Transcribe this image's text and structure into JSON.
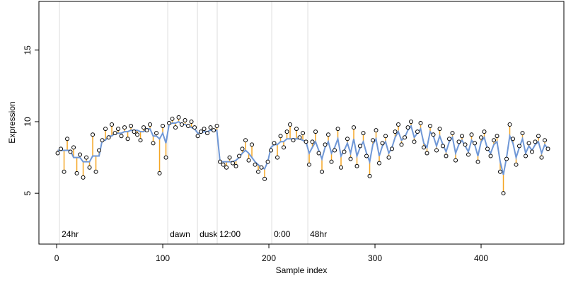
{
  "chart_data": {
    "type": "scatter",
    "xlabel": "Sample index",
    "ylabel": "Expression",
    "xlim": [
      -16.7,
      478
    ],
    "ylim": [
      1.45,
      18.4
    ],
    "xticks": [
      0,
      100,
      200,
      300,
      400
    ],
    "yticks": [
      5,
      10,
      15
    ],
    "point_color": "#ffffff",
    "fit_color": "#6f97d6",
    "residual_color": "#f5a623",
    "marker_color": "#dddddd",
    "marker_label_color": "#aaaaaa",
    "markers": [
      {
        "x": 2.7,
        "y": 2.1,
        "label": "24hr"
      },
      {
        "x": 104.7,
        "y": 2.1,
        "label": "dawn"
      },
      {
        "x": 132.7,
        "y": 2.1,
        "label": "dusk"
      },
      {
        "x": 151.3,
        "y": 2.1,
        "label": "12:00"
      },
      {
        "x": 202.7,
        "y": 2.1,
        "label": "0:00"
      },
      {
        "x": 236.7,
        "y": 2.1,
        "label": "48hr"
      }
    ],
    "x": [
      1,
      4,
      7,
      10,
      13,
      16,
      19,
      22,
      25,
      28,
      31,
      34,
      37,
      40,
      43,
      46,
      49,
      52,
      55,
      58,
      61,
      64,
      67,
      70,
      73,
      76,
      79,
      82,
      85,
      88,
      91,
      94,
      97,
      100,
      103,
      106,
      109,
      112,
      115,
      118,
      121,
      124,
      127,
      130,
      133,
      136,
      139,
      142,
      145,
      148,
      151,
      154,
      157,
      160,
      163,
      166,
      169,
      172,
      175,
      178,
      181,
      184,
      187,
      190,
      193,
      196,
      199,
      202,
      205,
      208,
      211,
      214,
      217,
      220,
      223,
      226,
      229,
      232,
      235,
      238,
      241,
      244,
      247,
      250,
      253,
      256,
      259,
      262,
      265,
      268,
      271,
      274,
      277,
      280,
      283,
      286,
      289,
      292,
      295,
      298,
      301,
      304,
      307,
      310,
      313,
      316,
      319,
      322,
      325,
      328,
      331,
      334,
      337,
      340,
      343,
      346,
      349,
      352,
      355,
      358,
      361,
      364,
      367,
      370,
      373,
      376,
      379,
      382,
      385,
      388,
      391,
      394,
      397,
      400,
      403,
      406,
      409,
      412,
      415,
      418,
      421,
      424,
      427,
      430,
      433,
      436,
      439,
      442,
      445,
      448,
      451,
      454,
      457,
      460,
      463
    ],
    "observed": [
      7.8,
      8.1,
      6.5,
      8.8,
      7.9,
      8.2,
      6.4,
      7.7,
      6.1,
      7.5,
      6.8,
      9.1,
      6.5,
      8.0,
      8.7,
      9.5,
      8.9,
      9.8,
      9.2,
      9.5,
      9.0,
      9.6,
      8.8,
      9.7,
      9.3,
      9.1,
      8.7,
      9.6,
      9.4,
      9.8,
      8.5,
      9.2,
      6.4,
      9.7,
      7.5,
      9.9,
      10.2,
      9.6,
      10.3,
      9.8,
      10.1,
      9.7,
      10.0,
      9.6,
      9.0,
      9.3,
      9.5,
      9.2,
      9.6,
      9.4,
      9.7,
      7.2,
      7.0,
      6.8,
      7.5,
      7.1,
      6.9,
      7.6,
      8.1,
      8.7,
      7.3,
      8.4,
      7.0,
      6.5,
      6.8,
      6.0,
      7.2,
      8.0,
      8.5,
      7.5,
      9.0,
      8.2,
      9.3,
      9.8,
      8.7,
      9.5,
      8.9,
      9.2,
      8.6,
      7.0,
      8.6,
      9.3,
      7.8,
      6.5,
      8.4,
      9.1,
      7.2,
      8.0,
      9.5,
      6.8,
      7.9,
      8.8,
      7.4,
      9.6,
      6.9,
      8.3,
      9.2,
      7.6,
      6.2,
      8.7,
      9.4,
      7.1,
      8.5,
      9.0,
      7.5,
      8.1,
      9.3,
      9.8,
      8.4,
      8.9,
      9.6,
      10.0,
      8.6,
      9.3,
      9.9,
      8.2,
      7.8,
      9.7,
      9.1,
      8.0,
      9.5,
      8.3,
      7.6,
      8.8,
      9.2,
      7.3,
      8.6,
      9.0,
      8.4,
      7.7,
      9.1,
      8.5,
      7.2,
      8.9,
      9.3,
      8.1,
      7.6,
      8.7,
      9.0,
      6.5,
      5.0,
      7.4,
      9.8,
      8.8,
      7.0,
      8.3,
      9.2,
      7.6,
      8.5,
      7.9,
      8.6,
      9.0,
      7.5,
      8.7,
      8.1
    ],
    "fitted": [
      8.0,
      8.0,
      8.0,
      8.0,
      8.0,
      7.5,
      7.5,
      7.5,
      7.2,
      7.2,
      7.2,
      7.6,
      7.6,
      7.6,
      8.7,
      8.7,
      9.0,
      9.0,
      9.2,
      9.2,
      9.2,
      9.3,
      9.3,
      9.4,
      9.4,
      9.4,
      9.3,
      9.3,
      9.5,
      9.5,
      9.0,
      9.0,
      8.8,
      9.2,
      8.5,
      9.8,
      9.9,
      9.9,
      10.0,
      9.8,
      9.8,
      9.7,
      9.6,
      9.5,
      9.2,
      9.2,
      9.3,
      9.3,
      9.4,
      9.4,
      9.4,
      7.2,
      7.2,
      7.2,
      7.2,
      7.2,
      7.3,
      7.5,
      7.8,
      8.0,
      7.8,
      7.5,
      7.2,
      7.0,
      6.8,
      6.7,
      7.2,
      8.2,
      8.4,
      8.4,
      8.6,
      8.6,
      8.8,
      8.8,
      8.8,
      8.8,
      8.8,
      8.7,
      8.6,
      7.8,
      8.2,
      8.6,
      8.0,
      7.4,
      8.2,
      8.6,
      7.8,
      8.2,
      8.8,
      7.6,
      8.0,
      8.5,
      7.8,
      8.8,
      7.6,
      8.2,
      8.6,
      7.8,
      7.2,
      8.4,
      8.8,
      7.6,
      8.3,
      8.6,
      7.8,
      8.2,
      8.9,
      9.3,
      8.7,
      8.9,
      9.4,
      9.7,
      8.9,
      9.2,
      9.5,
      8.5,
      8.2,
      9.3,
      9.0,
      8.3,
      9.0,
      8.4,
      7.9,
      8.6,
      8.9,
      7.8,
      8.4,
      8.7,
      8.3,
      7.9,
      8.7,
      8.4,
      7.6,
      8.6,
      8.9,
      8.1,
      7.8,
      8.4,
      8.6,
      7.2,
      6.3,
      7.5,
      9.0,
      8.5,
      7.5,
      8.2,
      8.8,
      7.8,
      8.3,
      8.0,
      8.4,
      8.6,
      7.8,
      8.4,
      8.1
    ]
  }
}
